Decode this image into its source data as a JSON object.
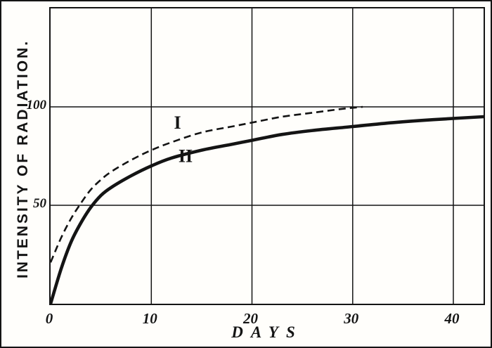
{
  "figure": {
    "kind": "scanned-book-line-figure"
  },
  "chart_data": {
    "type": "line",
    "title": "",
    "xlabel": "DAYS",
    "ylabel": "INTENSITY OF RADIATION.",
    "xlim": [
      0,
      43
    ],
    "ylim": [
      0,
      150
    ],
    "x_ticks": [
      0,
      10,
      20,
      30,
      40
    ],
    "y_ticks": [
      50,
      100
    ],
    "grid": true,
    "legend_position": "none",
    "series": [
      {
        "name": "I",
        "style": "dashed",
        "x": [
          0,
          1,
          2,
          3,
          4,
          5,
          6,
          8,
          10,
          12,
          15,
          18,
          20,
          23,
          26,
          29,
          31
        ],
        "y": [
          21,
          33,
          43,
          51,
          58,
          63,
          67,
          73,
          78,
          82,
          87,
          90,
          92,
          95,
          97,
          99,
          100
        ]
      },
      {
        "name": "II",
        "style": "solid",
        "x": [
          0,
          1,
          2,
          3,
          4,
          5,
          6,
          8,
          10,
          12,
          15,
          18,
          20,
          23,
          26,
          30,
          34,
          38,
          43
        ],
        "y": [
          0,
          17,
          31,
          41,
          49,
          55,
          59,
          65,
          70,
          74,
          78,
          81,
          83,
          86,
          88,
          90,
          92,
          93.5,
          95
        ]
      }
    ],
    "annotations": [
      {
        "text": "I",
        "x": 12.6,
        "y": 89
      },
      {
        "text": "II",
        "x": 13.4,
        "y": 72
      }
    ],
    "ink_color": "#141414"
  }
}
